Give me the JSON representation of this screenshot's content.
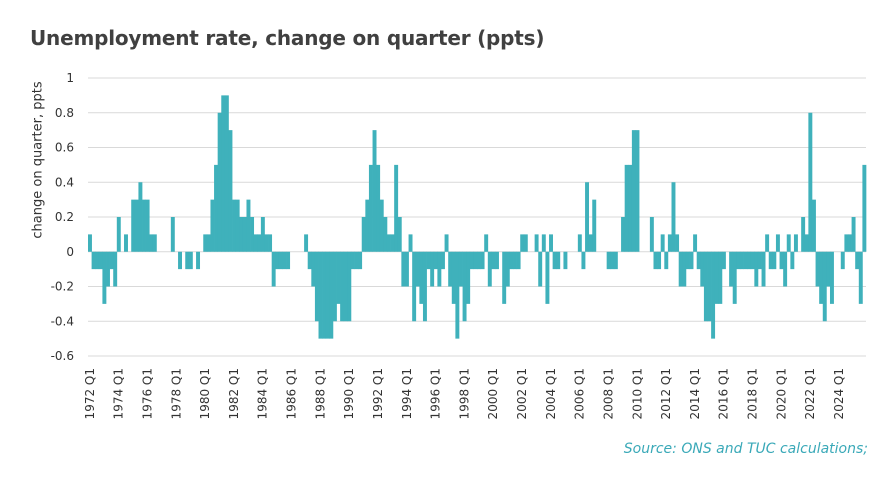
{
  "chart_data": {
    "type": "bar",
    "title": "Unemployment rate, change on quarter (ppts)",
    "ylabel": "change on quarter, ppts",
    "xlabel": "",
    "ylim": [
      -0.6,
      1
    ],
    "yticks": [
      -0.6,
      -0.4,
      -0.2,
      0,
      0.2,
      0.4,
      0.6,
      0.8,
      1
    ],
    "ytick_labels": [
      "-0.6",
      "-0.4",
      "-0.2",
      "0",
      "0.2",
      "0.4",
      "0.6",
      "0.8",
      "1"
    ],
    "x_start": "1972 Q1",
    "x_end": "2024 Q1",
    "xtick_labels": [
      "1972 Q1",
      "1974 Q1",
      "1976 Q1",
      "1978 Q1",
      "1980 Q1",
      "1982 Q1",
      "1984 Q1",
      "1986 Q1",
      "1988 Q1",
      "1990 Q1",
      "1992 Q1",
      "1994 Q1",
      "1996 Q1",
      "1998 Q1",
      "2000 Q1",
      "2002 Q1",
      "2004 Q1",
      "2006 Q1",
      "2008 Q1",
      "2010 Q1",
      "2012 Q1",
      "2014 Q1",
      "2016 Q1",
      "2018 Q1",
      "2020 Q1",
      "2022 Q1",
      "2024 Q1"
    ],
    "color": "#3fb1bb",
    "grid": true,
    "values": [
      0.1,
      -0.1,
      -0.1,
      -0.1,
      -0.3,
      -0.2,
      -0.1,
      -0.2,
      0.2,
      0,
      0.1,
      0,
      0.3,
      0.3,
      0.4,
      0.3,
      0.3,
      0.1,
      0.1,
      0,
      0,
      0,
      0,
      0.2,
      0,
      -0.1,
      0,
      -0.1,
      -0.1,
      0,
      -0.1,
      0,
      0.1,
      0.1,
      0.3,
      0.5,
      0.8,
      0.9,
      0.9,
      0.7,
      0.3,
      0.3,
      0.2,
      0.2,
      0.3,
      0.2,
      0.1,
      0.1,
      0.2,
      0.1,
      0.1,
      -0.2,
      -0.1,
      -0.1,
      -0.1,
      -0.1,
      0,
      0,
      0,
      0,
      0.1,
      -0.1,
      -0.2,
      -0.4,
      -0.5,
      -0.5,
      -0.5,
      -0.5,
      -0.4,
      -0.3,
      -0.4,
      -0.4,
      -0.4,
      -0.1,
      -0.1,
      -0.1,
      0.2,
      0.3,
      0.5,
      0.7,
      0.5,
      0.3,
      0.2,
      0.1,
      0.1,
      0.5,
      0.2,
      -0.2,
      -0.2,
      0.1,
      -0.4,
      -0.2,
      -0.3,
      -0.4,
      -0.1,
      -0.2,
      -0.1,
      -0.2,
      -0.1,
      0.1,
      -0.2,
      -0.3,
      -0.5,
      -0.2,
      -0.4,
      -0.3,
      -0.1,
      -0.1,
      -0.1,
      -0.1,
      0.1,
      -0.2,
      -0.1,
      -0.1,
      0,
      -0.3,
      -0.2,
      -0.1,
      -0.1,
      -0.1,
      0.1,
      0.1,
      0,
      0,
      0.1,
      -0.2,
      0.1,
      -0.3,
      0.1,
      -0.1,
      -0.1,
      0,
      -0.1,
      0,
      0,
      0,
      0.1,
      -0.1,
      0.4,
      0.1,
      0.3,
      0,
      0,
      0,
      -0.1,
      -0.1,
      -0.1,
      0,
      0.2,
      0.5,
      0.5,
      0.7,
      0.7,
      0,
      0,
      0,
      0.2,
      -0.1,
      -0.1,
      0.1,
      -0.1,
      0.1,
      0.4,
      0.1,
      -0.2,
      -0.2,
      -0.1,
      -0.1,
      0.1,
      -0.1,
      -0.2,
      -0.4,
      -0.4,
      -0.5,
      -0.3,
      -0.3,
      -0.1,
      0,
      -0.2,
      -0.3,
      -0.1,
      -0.1,
      -0.1,
      -0.1,
      -0.1,
      -0.2,
      -0.1,
      -0.2,
      0.1,
      -0.1,
      -0.1,
      0.1,
      -0.1,
      -0.2,
      0.1,
      -0.1,
      0.1,
      0,
      0.2,
      0.1,
      0.8,
      0.3,
      -0.2,
      -0.3,
      -0.4,
      -0.2,
      -0.3,
      0,
      0,
      -0.1,
      0.1,
      0.1,
      0.2,
      -0.1,
      -0.3,
      0.5
    ]
  },
  "source": "Source: ONS and TUC calculations;"
}
